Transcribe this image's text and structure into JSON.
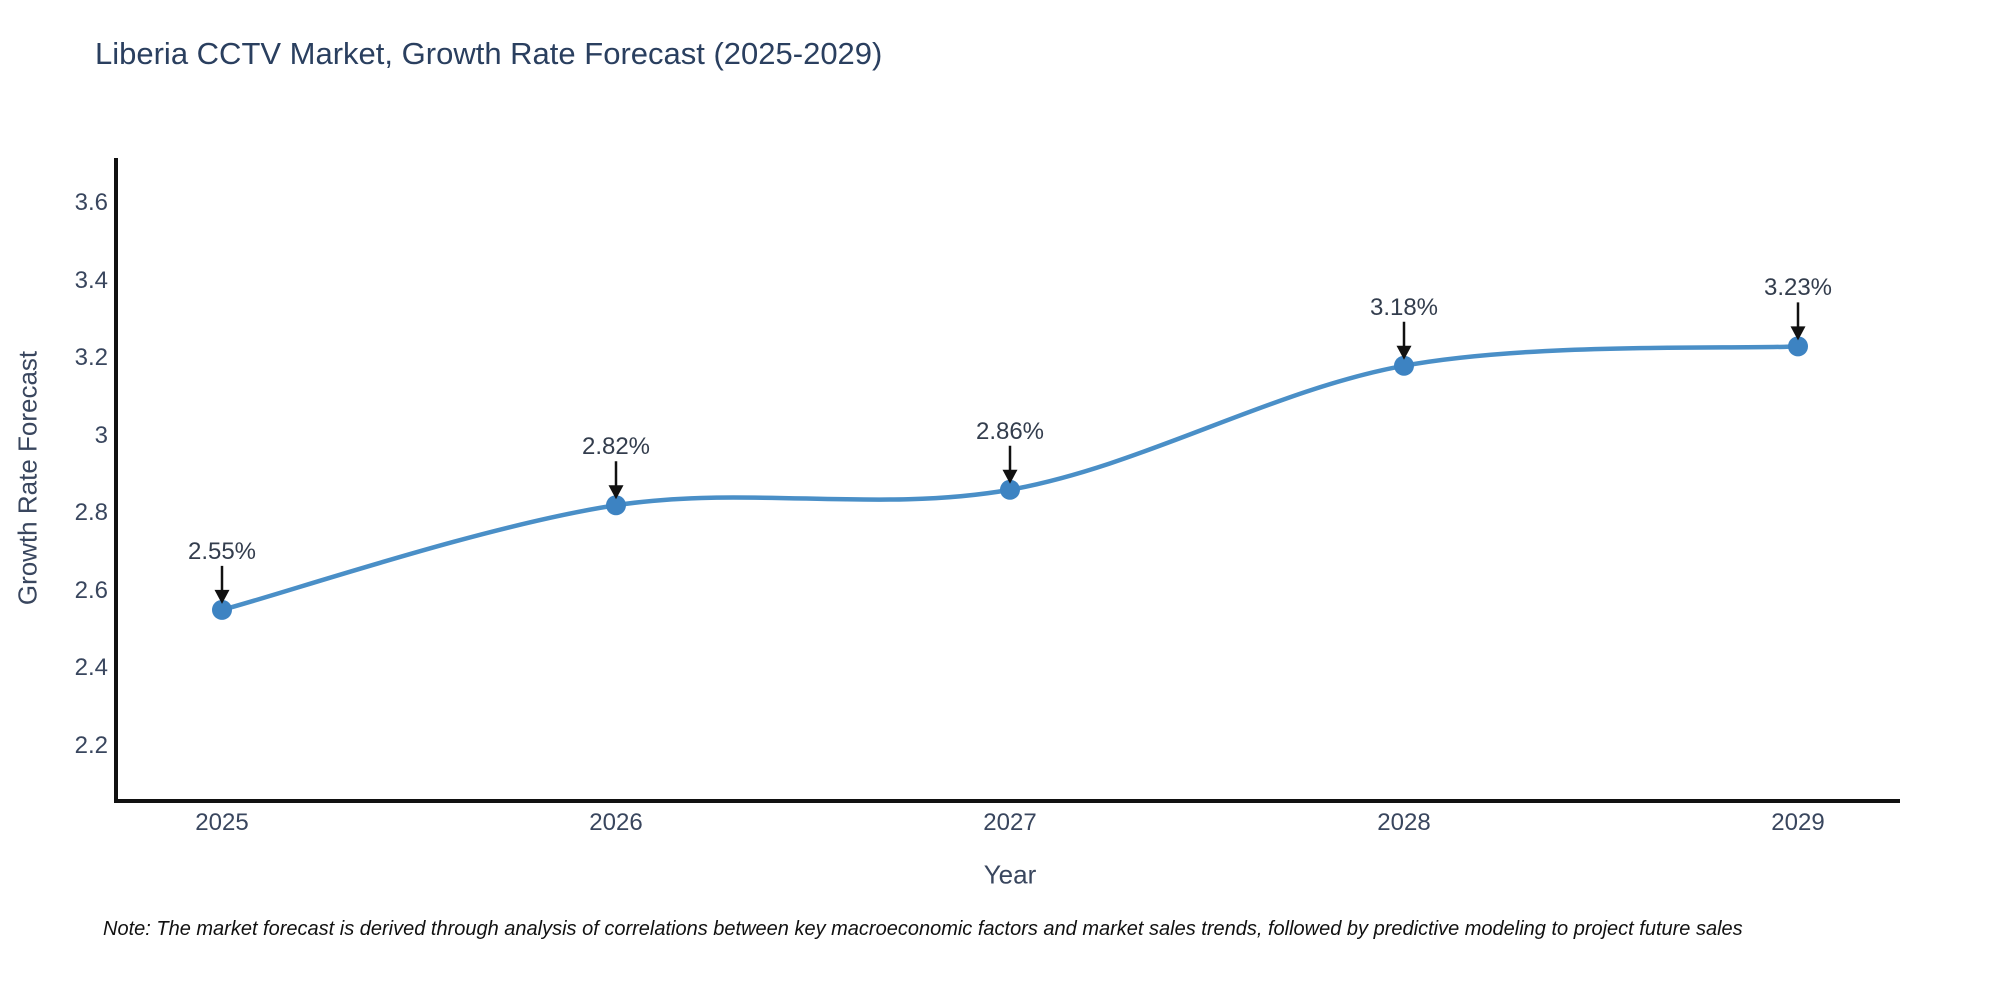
{
  "chart_data": {
    "type": "line",
    "title": "Liberia CCTV Market, Growth Rate Forecast (2025-2029)",
    "xlabel": "Year",
    "ylabel": "Growth Rate Forecast",
    "categories": [
      2025,
      2026,
      2027,
      2028,
      2029
    ],
    "series": [
      {
        "name": "Growth Rate Forecast",
        "values": [
          2.55,
          2.82,
          2.86,
          3.18,
          3.23
        ]
      }
    ],
    "point_labels": [
      "2.55%",
      "2.82%",
      "2.86%",
      "3.18%",
      "3.23%"
    ],
    "yticks": [
      2.2,
      2.4,
      2.6,
      2.8,
      3,
      3.2,
      3.4,
      3.6
    ],
    "ylim": [
      2.055,
      3.71
    ],
    "xlim": [
      2024.73,
      2029.26
    ],
    "grid": false,
    "legend": false,
    "line_shape": "spline",
    "marker": "circle",
    "annotation_style": "value-above-with-down-arrow",
    "colors": {
      "line": "#4a8fc7",
      "marker": "#3d83c2",
      "axis": "#111111",
      "arrow": "#111111",
      "tick_text": "#39465e",
      "title_text": "#2a3f5f"
    }
  },
  "note": "Note: The market forecast is derived through analysis of correlations between key macroeconomic factors and market sales trends, followed by predictive modeling to project future sales"
}
